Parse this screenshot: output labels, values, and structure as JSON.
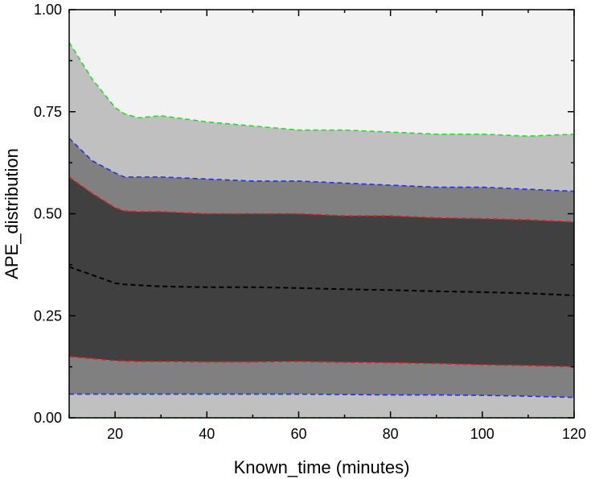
{
  "chart_data": {
    "type": "area",
    "title": "",
    "xlabel": "Known_time (minutes)",
    "ylabel": "APE_distribution",
    "xlim": [
      10,
      120
    ],
    "ylim": [
      0,
      1
    ],
    "xticks": [
      20,
      40,
      60,
      80,
      100,
      120
    ],
    "xtick_labels": [
      "20",
      "40",
      "60",
      "80",
      "100",
      "120"
    ],
    "yticks": [
      0,
      0.25,
      0.5,
      0.75,
      1.0
    ],
    "ytick_labels": [
      "0.00",
      "0.25",
      "0.50",
      "0.75",
      "1.00"
    ],
    "grid": false,
    "legend": "none",
    "x": [
      10,
      15,
      20,
      22,
      25,
      30,
      40,
      50,
      60,
      70,
      80,
      90,
      100,
      110,
      120
    ],
    "series": [
      {
        "key": "upper_outer",
        "color": "#22dd22",
        "values": [
          0.92,
          0.83,
          0.76,
          0.745,
          0.735,
          0.74,
          0.725,
          0.715,
          0.705,
          0.705,
          0.7,
          0.695,
          0.695,
          0.69,
          0.695
        ]
      },
      {
        "key": "upper_mid",
        "color": "#2233dd",
        "values": [
          0.685,
          0.63,
          0.6,
          0.59,
          0.59,
          0.59,
          0.585,
          0.58,
          0.58,
          0.575,
          0.57,
          0.565,
          0.565,
          0.56,
          0.555
        ]
      },
      {
        "key": "upper_inner",
        "color": "#dd2222",
        "values": [
          0.59,
          0.55,
          0.515,
          0.507,
          0.505,
          0.505,
          0.5,
          0.5,
          0.5,
          0.495,
          0.495,
          0.49,
          0.488,
          0.485,
          0.48
        ]
      },
      {
        "key": "median",
        "color": "#000000",
        "values": [
          0.37,
          0.35,
          0.33,
          0.327,
          0.325,
          0.322,
          0.32,
          0.32,
          0.318,
          0.315,
          0.313,
          0.31,
          0.308,
          0.305,
          0.3
        ]
      },
      {
        "key": "lower_inner",
        "color": "#dd2222",
        "values": [
          0.15,
          0.145,
          0.14,
          0.139,
          0.138,
          0.138,
          0.137,
          0.137,
          0.138,
          0.136,
          0.135,
          0.133,
          0.13,
          0.128,
          0.125
        ]
      },
      {
        "key": "lower_mid",
        "color": "#2233dd",
        "values": [
          0.058,
          0.058,
          0.058,
          0.058,
          0.058,
          0.058,
          0.058,
          0.058,
          0.058,
          0.057,
          0.056,
          0.056,
          0.055,
          0.053,
          0.05
        ]
      },
      {
        "key": "lower_outer",
        "color": "#22dd22",
        "values": [
          0,
          0,
          0,
          0,
          0,
          0,
          0,
          0,
          0,
          0,
          0,
          0,
          0,
          0,
          0
        ]
      }
    ],
    "bands": [
      {
        "upper": "upper_outer",
        "lower": "upper_mid",
        "color": "#c0c0c0"
      },
      {
        "upper": "upper_mid",
        "lower": "upper_inner",
        "color": "#808080"
      },
      {
        "upper": "upper_inner",
        "lower": "lower_inner",
        "color": "#404040"
      },
      {
        "upper": "lower_inner",
        "lower": "lower_mid",
        "color": "#808080"
      },
      {
        "upper": "lower_mid",
        "lower": "lower_outer",
        "color": "#c0c0c0"
      }
    ],
    "background_color": "#f2f2f2"
  }
}
